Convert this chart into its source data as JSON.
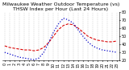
{
  "title": "Milwaukee Weather Outdoor Temperature (vs) THSW Index per Hour (Last 24 Hours)",
  "hours": [
    0,
    1,
    2,
    3,
    4,
    5,
    6,
    7,
    8,
    9,
    10,
    11,
    12,
    13,
    14,
    15,
    16,
    17,
    18,
    19,
    20,
    21,
    22,
    23
  ],
  "temp": [
    38,
    36,
    35,
    34,
    33,
    33,
    32,
    33,
    36,
    42,
    50,
    58,
    63,
    65,
    64,
    60,
    55,
    50,
    47,
    45,
    44,
    43,
    43,
    44
  ],
  "thsw": [
    30,
    28,
    26,
    24,
    23,
    22,
    21,
    23,
    30,
    42,
    55,
    65,
    72,
    70,
    66,
    58,
    50,
    43,
    38,
    35,
    33,
    32,
    31,
    30
  ],
  "temp_color": "#dd0000",
  "thsw_color": "#0000cc",
  "bg_color": "#ffffff",
  "grid_color": "#aaaaaa",
  "ylim": [
    20,
    80
  ],
  "yticks": [
    20,
    30,
    40,
    50,
    60,
    70,
    80
  ],
  "title_fontsize": 4.5,
  "tick_fontsize": 3.5
}
